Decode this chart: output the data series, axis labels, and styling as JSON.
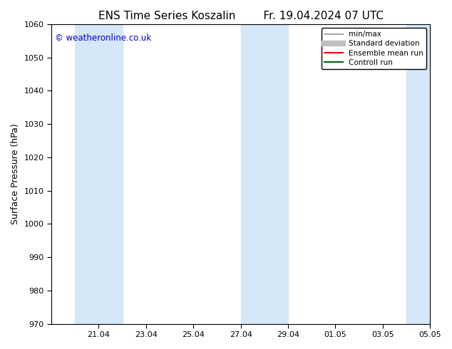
{
  "title": "ENS Time Series Koszalin        Fr. 19.04.2024 07 UTC",
  "ylabel": "Surface Pressure (hPa)",
  "ylim": [
    970,
    1060
  ],
  "yticks": [
    970,
    980,
    990,
    1000,
    1010,
    1020,
    1030,
    1040,
    1050,
    1060
  ],
  "xtick_labels": [
    "21.04",
    "23.04",
    "25.04",
    "27.04",
    "29.04",
    "01.05",
    "03.05",
    "05.05"
  ],
  "xtick_positions_days": [
    2,
    4,
    6,
    8,
    10,
    12,
    14,
    16
  ],
  "x_start_date": "2024-04-19",
  "x_end_date": "2024-05-05",
  "shaded_bands": [
    {
      "start": "2024-04-20",
      "end": "2024-04-22"
    },
    {
      "start": "2024-04-27",
      "end": "2024-04-29"
    },
    {
      "start": "2024-05-04",
      "end": "2024-05-06"
    }
  ],
  "band_color": "#d6e8f7",
  "background_color": "#ffffff",
  "watermark": "© weatheronline.co.uk",
  "watermark_color": "#0000cc",
  "legend_entries": [
    {
      "label": "min/max",
      "color": "#aaaaaa",
      "lw": 1.5
    },
    {
      "label": "Standard deviation",
      "color": "#c0c0c0",
      "lw": 6
    },
    {
      "label": "Ensemble mean run",
      "color": "#ff0000",
      "lw": 1.5
    },
    {
      "label": "Controll run",
      "color": "#006600",
      "lw": 1.5
    }
  ],
  "title_fontsize": 11,
  "axis_label_fontsize": 9,
  "tick_fontsize": 8,
  "legend_fontsize": 7.5
}
